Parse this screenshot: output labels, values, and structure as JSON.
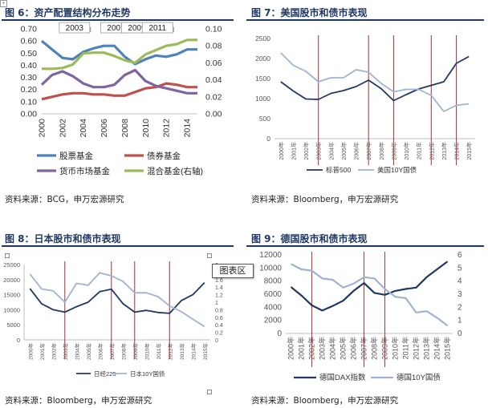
{
  "panels": [
    {
      "title": "图 6：资产配置结构分布走势",
      "source": "资料来源：BCG，申万宏源研究"
    },
    {
      "title": "图 7：美国股市和债市表现",
      "source": "资料来源：Bloomberg，申万宏源研究"
    },
    {
      "title": "图 8：日本股市和债市表现",
      "source": "资料来源：Bloomberg，申万宏源研究"
    },
    {
      "title": "图 9：德国股市和债市表现",
      "source": "资料来源：Bloomberg，申万宏源研究"
    }
  ],
  "ui": {
    "tooltip": "图表区",
    "corner_icon": "move-handle-icon"
  },
  "chart_data": [
    {
      "type": "line",
      "x": [
        2000,
        2001,
        2002,
        2003,
        2004,
        2005,
        2006,
        2007,
        2008,
        2009,
        2010,
        2011,
        2012,
        2013,
        2014,
        2015
      ],
      "x_ticks": [
        "2000",
        "2002",
        "2004",
        "2006",
        "2008",
        "2010",
        "2012",
        "2014"
      ],
      "ylim": [
        0,
        0.7
      ],
      "y_ticks": [
        "0.00",
        "0.10",
        "0.20",
        "0.30",
        "0.40",
        "0.50",
        "0.60",
        "0.70"
      ],
      "y2lim": [
        0,
        0.1
      ],
      "y2_ticks": [
        "0.00",
        "0.02",
        "0.04",
        "0.06",
        "0.08",
        "0.10"
      ],
      "period_labels": [
        {
          "label": "2003",
          "x": 2003
        },
        {
          "label": "2007",
          "x": 2007
        },
        {
          "label": "2009",
          "x": 2009
        },
        {
          "label": "2011",
          "x": 2011
        }
      ],
      "series": [
        {
          "name": "股票基金",
          "color": "#4f81bd",
          "axis": "left",
          "values": [
            0.6,
            0.53,
            0.46,
            0.45,
            0.51,
            0.54,
            0.56,
            0.56,
            0.47,
            0.41,
            0.45,
            0.48,
            0.47,
            0.49,
            0.53,
            0.53
          ]
        },
        {
          "name": "债券基金",
          "color": "#c0504d",
          "axis": "left",
          "values": [
            0.12,
            0.14,
            0.16,
            0.17,
            0.17,
            0.16,
            0.16,
            0.15,
            0.15,
            0.18,
            0.21,
            0.22,
            0.25,
            0.24,
            0.22,
            0.22
          ]
        },
        {
          "name": "货币市场基金",
          "color": "#8064a2",
          "axis": "left",
          "values": [
            0.24,
            0.32,
            0.35,
            0.31,
            0.25,
            0.22,
            0.22,
            0.24,
            0.32,
            0.36,
            0.27,
            0.23,
            0.21,
            0.19,
            0.17,
            0.17
          ]
        },
        {
          "name": "混合基金(右轴)",
          "color": "#9bbb59",
          "axis": "right",
          "values": [
            0.053,
            0.053,
            0.054,
            0.058,
            0.071,
            0.072,
            0.072,
            0.068,
            0.063,
            0.06,
            0.07,
            0.075,
            0.08,
            0.082,
            0.087,
            0.087
          ]
        }
      ]
    },
    {
      "type": "line",
      "x": [
        "2000年",
        "2001年",
        "2002年",
        "2003年",
        "2004年",
        "2005年",
        "2006年",
        "2007年",
        "2008年",
        "2009年",
        "2010年",
        "2011年",
        "2012年",
        "2013年",
        "2014年",
        "2015年"
      ],
      "ylim": [
        0,
        2500
      ],
      "y_ticks": [
        "0",
        "500",
        "1000",
        "1500",
        "2000",
        "2500"
      ],
      "event_lines": [
        "2003年",
        "2007年",
        "2009年",
        "2012年",
        "2014年"
      ],
      "series": [
        {
          "name": "标普500",
          "color": "#1f3864",
          "values": [
            1420,
            1190,
            990,
            980,
            1130,
            1200,
            1300,
            1460,
            1250,
            950,
            1100,
            1240,
            1330,
            1420,
            1880,
            2050
          ]
        },
        {
          "name": "美国10Y国债",
          "color": "#9db3d4",
          "values": [
            2140,
            1830,
            1680,
            1420,
            1520,
            1520,
            1720,
            1660,
            1380,
            1170,
            1230,
            1230,
            1080,
            680,
            830,
            870
          ]
        }
      ]
    },
    {
      "type": "line",
      "x": [
        "2000年",
        "2001年",
        "2002年",
        "2003年",
        "2004年",
        "2005年",
        "2006年",
        "2007年",
        "2008年",
        "2009年",
        "2010年",
        "2011年",
        "2012年",
        "2013年",
        "2014年",
        "2015年"
      ],
      "ylim": [
        0,
        25000
      ],
      "y_ticks": [
        "0",
        "5000",
        "10000",
        "15000",
        "20000",
        "25000"
      ],
      "y2lim": [
        0,
        2
      ],
      "y2_ticks": [
        "0",
        "0.2",
        "0.4",
        "0.6",
        "0.8",
        "1",
        "1.2",
        "1.4",
        "1.6",
        "1.8",
        "2"
      ],
      "event_lines": [
        "2003年",
        "2007年",
        "2009年",
        "2012年"
      ],
      "series": [
        {
          "name": "日经225",
          "color": "#1f3864",
          "axis": "left",
          "values": [
            17000,
            12000,
            10000,
            9200,
            11000,
            12500,
            16000,
            16800,
            12000,
            9200,
            9800,
            9100,
            8800,
            13000,
            15000,
            19000
          ]
        },
        {
          "name": "日本10Y国债",
          "color": "#9db3d4",
          "axis": "right",
          "values": [
            1.75,
            1.35,
            1.3,
            1.0,
            1.5,
            1.45,
            1.78,
            1.7,
            1.55,
            1.25,
            1.25,
            1.15,
            0.9,
            0.75,
            0.55,
            0.35
          ]
        }
      ]
    },
    {
      "type": "line",
      "x": [
        "2000年",
        "2001年",
        "2002年",
        "2003年",
        "2004年",
        "2005年",
        "2006年",
        "2007年",
        "2008年",
        "2009年",
        "2010年",
        "2011年",
        "2012年",
        "2013年",
        "2014年",
        "2015年"
      ],
      "ylim": [
        0,
        12000
      ],
      "y_ticks": [
        "0",
        "2000",
        "4000",
        "6000",
        "8000",
        "10000",
        "12000"
      ],
      "y2lim": [
        0,
        6
      ],
      "y2_ticks": [
        "0",
        "1",
        "2",
        "3",
        "4",
        "5",
        "6"
      ],
      "event_lines": [
        "2002年",
        "2007年",
        "2009年"
      ],
      "series": [
        {
          "name": "德国DAX指数",
          "color": "#1f3864",
          "axis": "left",
          "values": [
            7100,
            5800,
            4300,
            3500,
            4200,
            5000,
            6500,
            7700,
            6200,
            5900,
            6500,
            6800,
            7000,
            8600,
            9800,
            11000
          ]
        },
        {
          "name": "德国10Y国债",
          "color": "#9db3d4",
          "axis": "right",
          "values": [
            5.3,
            4.9,
            4.8,
            4.2,
            4.1,
            3.5,
            3.8,
            4.3,
            4.2,
            3.4,
            2.8,
            2.7,
            1.6,
            1.7,
            1.2,
            0.6
          ]
        }
      ]
    }
  ]
}
